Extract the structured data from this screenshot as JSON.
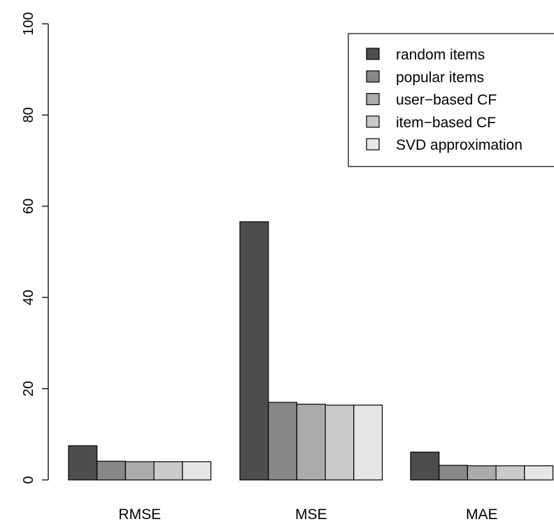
{
  "chart_data": {
    "type": "bar",
    "categories": [
      "RMSE",
      "MSE",
      "MAE"
    ],
    "series": [
      {
        "name": "random items",
        "color": "#4d4d4d",
        "values": [
          7.5,
          56.6,
          6.1
        ]
      },
      {
        "name": "popular items",
        "color": "#888888",
        "values": [
          4.1,
          17.0,
          3.2
        ]
      },
      {
        "name": "user−based CF",
        "color": "#ababab",
        "values": [
          4.0,
          16.6,
          3.1
        ]
      },
      {
        "name": "item−based CF",
        "color": "#cacaca",
        "values": [
          4.0,
          16.4,
          3.1
        ]
      },
      {
        "name": "SVD approximation",
        "color": "#e6e6e6",
        "values": [
          4.0,
          16.4,
          3.1
        ]
      }
    ],
    "ylim": [
      0,
      100
    ],
    "yticks": [
      0,
      20,
      40,
      60,
      80,
      100
    ],
    "legend_position": "top-right",
    "grid": false
  }
}
